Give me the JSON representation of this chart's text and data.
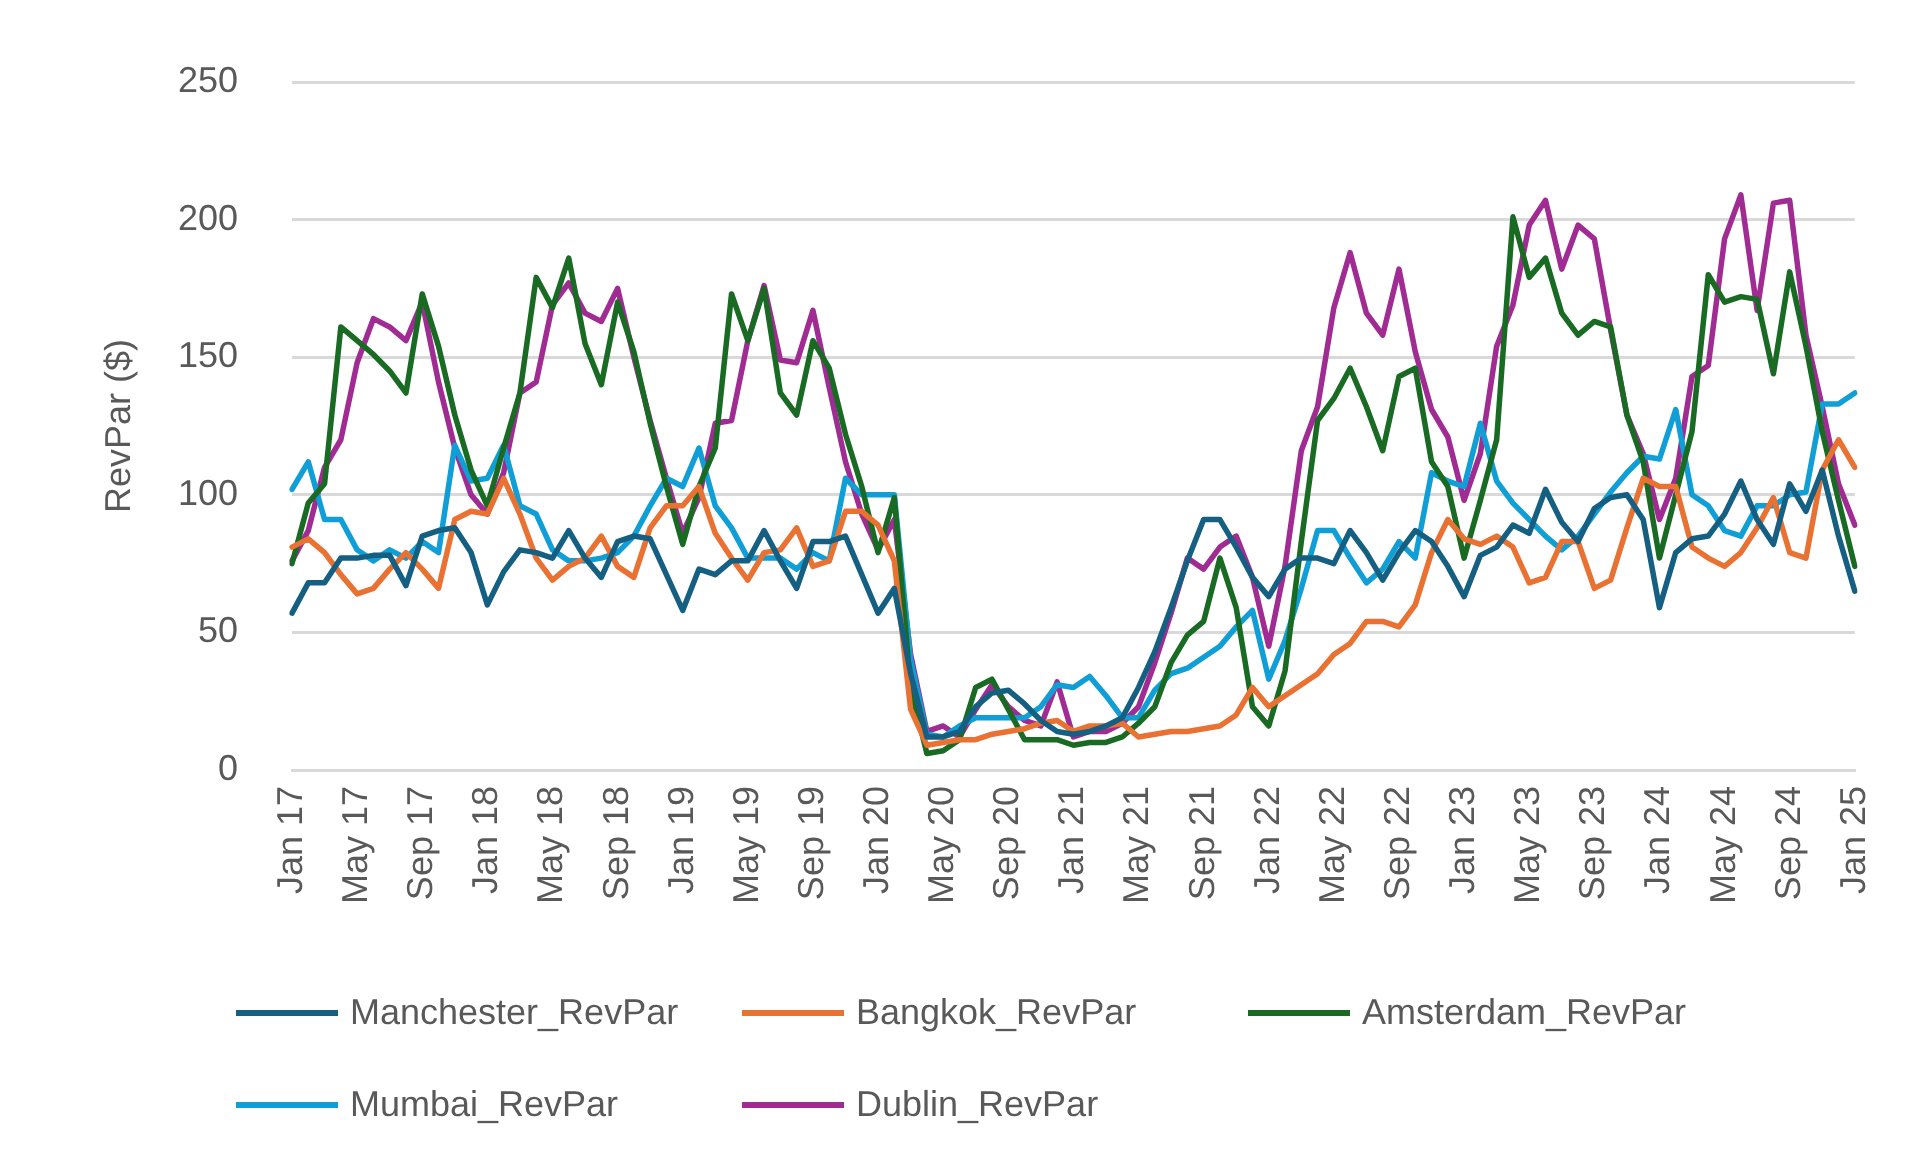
{
  "chart_data": {
    "type": "line",
    "ylabel": "RevPar ($)",
    "categories": [
      "Jan 17",
      null,
      null,
      null,
      "May 17",
      null,
      null,
      null,
      "Sep 17",
      null,
      null,
      null,
      "Jan 18",
      null,
      null,
      null,
      "May 18",
      null,
      null,
      null,
      "Sep 18",
      null,
      null,
      null,
      "Jan 19",
      null,
      null,
      null,
      "May 19",
      null,
      null,
      null,
      "Sep 19",
      null,
      null,
      null,
      "Jan 20",
      null,
      null,
      null,
      "May 20",
      null,
      null,
      null,
      "Sep 20",
      null,
      null,
      null,
      "Jan 21",
      null,
      null,
      null,
      "May 21",
      null,
      null,
      null,
      "Sep 21",
      null,
      null,
      null,
      "Jan 22",
      null,
      null,
      null,
      "May 22",
      null,
      null,
      null,
      "Sep 22",
      null,
      null,
      null,
      "Jan 23",
      null,
      null,
      null,
      "May 23",
      null,
      null,
      null,
      "Sep 23",
      null,
      null,
      null,
      "Jan 24",
      null,
      null,
      null,
      "May 24",
      null,
      null,
      null,
      "Sep 24",
      null,
      null,
      null,
      "Jan 25"
    ],
    "series": [
      {
        "name": "Manchester_RevPar",
        "color": "#156082",
        "values": [
          57,
          68,
          68,
          77,
          77,
          78,
          78,
          67,
          85,
          87,
          88,
          79,
          60,
          72,
          80,
          79,
          77,
          87,
          77,
          70,
          83,
          85,
          84,
          71,
          58,
          73,
          71,
          76,
          76,
          87,
          76,
          66,
          83,
          83,
          85,
          71,
          57,
          66,
          35,
          12,
          12,
          14,
          23,
          28,
          29,
          24,
          18,
          14,
          13,
          14,
          16,
          19,
          30,
          43,
          59,
          76,
          91,
          91,
          81,
          70,
          63,
          73,
          77,
          77,
          75,
          87,
          79,
          69,
          79,
          87,
          83,
          74,
          63,
          78,
          81,
          89,
          86,
          102,
          90,
          83,
          95,
          99,
          100,
          91,
          59,
          79,
          84,
          85,
          93,
          105,
          91,
          82,
          104,
          94,
          109,
          85,
          65
        ]
      },
      {
        "name": "Bangkok_RevPar",
        "color": "#e97132",
        "values": [
          81,
          84,
          79,
          71,
          64,
          66,
          73,
          79,
          73,
          66,
          91,
          94,
          93,
          106,
          93,
          77,
          69,
          74,
          77,
          85,
          74,
          70,
          88,
          96,
          96,
          103,
          86,
          77,
          69,
          79,
          80,
          88,
          74,
          76,
          94,
          94,
          89,
          76,
          22,
          9,
          10,
          11,
          11,
          13,
          14,
          15,
          17,
          18,
          14,
          16,
          16,
          17,
          12,
          13,
          14,
          14,
          15,
          16,
          20,
          30,
          23,
          27,
          31,
          35,
          42,
          46,
          54,
          54,
          52,
          60,
          79,
          91,
          84,
          82,
          85,
          81,
          68,
          70,
          83,
          83,
          66,
          69,
          88,
          106,
          103,
          103,
          81,
          77,
          74,
          79,
          88,
          99,
          79,
          77,
          109,
          120,
          110
        ]
      },
      {
        "name": "Amsterdam_RevPar",
        "color": "#196b24",
        "values": [
          75,
          97,
          104,
          161,
          156,
          151,
          145,
          137,
          173,
          154,
          129,
          109,
          96,
          117,
          137,
          179,
          168,
          186,
          155,
          140,
          170,
          152,
          126,
          103,
          82,
          103,
          117,
          173,
          156,
          175,
          137,
          129,
          156,
          146,
          122,
          103,
          79,
          99,
          30,
          6,
          7,
          11,
          30,
          33,
          22,
          11,
          11,
          11,
          9,
          10,
          10,
          12,
          17,
          23,
          39,
          49,
          54,
          77,
          59,
          23,
          16,
          36,
          83,
          127,
          135,
          146,
          132,
          116,
          143,
          146,
          112,
          103,
          77,
          98,
          120,
          201,
          179,
          186,
          166,
          158,
          163,
          161,
          129,
          112,
          77,
          100,
          123,
          180,
          170,
          172,
          171,
          144,
          181,
          154,
          123,
          98,
          74
        ]
      },
      {
        "name": "Mumbai_RevPar",
        "color": "#0f9ed5",
        "values": [
          102,
          112,
          91,
          91,
          80,
          76,
          80,
          77,
          83,
          79,
          118,
          105,
          106,
          118,
          96,
          93,
          80,
          76,
          76,
          77,
          79,
          85,
          96,
          106,
          103,
          117,
          96,
          88,
          77,
          77,
          77,
          73,
          79,
          76,
          106,
          100,
          100,
          100,
          40,
          13,
          12,
          16,
          19,
          19,
          19,
          19,
          23,
          31,
          30,
          34,
          27,
          19,
          19,
          29,
          35,
          37,
          41,
          45,
          52,
          58,
          33,
          47,
          66,
          87,
          87,
          77,
          68,
          73,
          83,
          77,
          108,
          105,
          103,
          126,
          105,
          97,
          91,
          85,
          80,
          85,
          93,
          101,
          108,
          114,
          113,
          131,
          100,
          96,
          87,
          85,
          96,
          96,
          100,
          101,
          133,
          133,
          137
        ]
      },
      {
        "name": "Dublin_RevPar",
        "color": "#a02b93",
        "values": [
          76,
          87,
          110,
          120,
          148,
          164,
          161,
          156,
          170,
          141,
          117,
          100,
          93,
          108,
          137,
          141,
          169,
          177,
          166,
          163,
          175,
          150,
          127,
          106,
          86,
          99,
          126,
          127,
          156,
          176,
          149,
          148,
          167,
          139,
          112,
          93,
          80,
          91,
          42,
          14,
          16,
          12,
          22,
          31,
          23,
          18,
          16,
          32,
          12,
          14,
          14,
          17,
          23,
          39,
          57,
          77,
          73,
          81,
          85,
          70,
          45,
          74,
          116,
          132,
          168,
          188,
          166,
          158,
          182,
          152,
          131,
          121,
          98,
          115,
          154,
          169,
          198,
          207,
          182,
          198,
          193,
          160,
          129,
          115,
          91,
          106,
          143,
          147,
          193,
          209,
          167,
          206,
          207,
          158,
          132,
          104,
          89
        ]
      }
    ],
    "ylim": [
      0,
      250
    ],
    "yticks": [
      0,
      50,
      100,
      150,
      200,
      250
    ],
    "grid": "y",
    "legend": "bottom",
    "line_style": "solid"
  }
}
